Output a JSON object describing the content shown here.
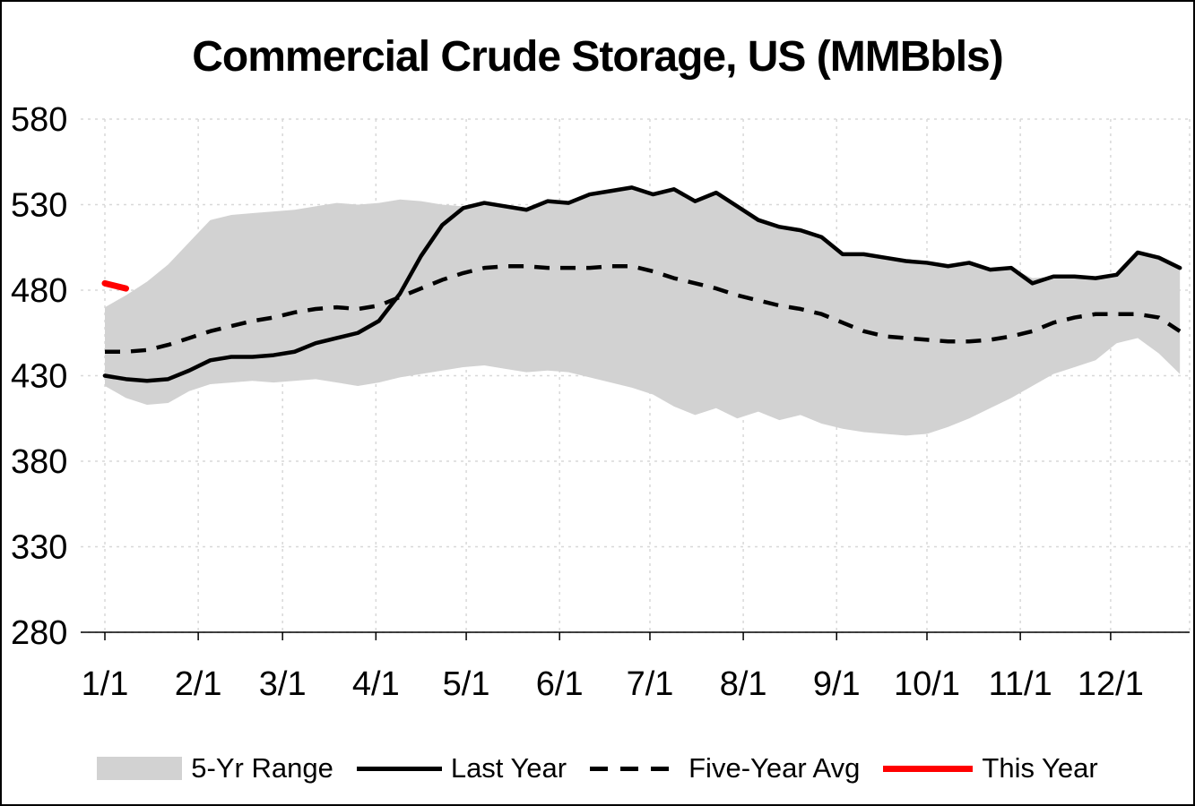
{
  "title": "Commercial Crude Storage, US (MMBbls)",
  "colors": {
    "band": "#d2d2d2",
    "line": "#000000",
    "red": "#ff0000",
    "grid": "#d8d8d8"
  },
  "chart_data": {
    "type": "line",
    "title": "Commercial Crude Storage, US (MMBbls)",
    "ylabel": "",
    "xlabel": "",
    "ylim": [
      280,
      580
    ],
    "yticks": [
      280,
      330,
      380,
      430,
      480,
      530,
      580
    ],
    "grid": true,
    "legend_position": "bottom",
    "xticks": {
      "days": [
        1,
        32,
        60,
        91,
        121,
        152,
        182,
        213,
        244,
        274,
        305,
        335
      ],
      "labels": [
        "1/1",
        "2/1",
        "3/1",
        "4/1",
        "5/1",
        "6/1",
        "7/1",
        "8/1",
        "9/1",
        "10/1",
        "11/1",
        "12/1"
      ]
    },
    "x_days": [
      1,
      8,
      15,
      22,
      29,
      36,
      43,
      50,
      57,
      64,
      71,
      78,
      85,
      92,
      99,
      106,
      113,
      120,
      127,
      134,
      141,
      148,
      155,
      162,
      169,
      176,
      183,
      190,
      197,
      204,
      211,
      218,
      225,
      232,
      239,
      246,
      253,
      260,
      267,
      274,
      281,
      288,
      295,
      302,
      309,
      316,
      323,
      330,
      337,
      344,
      351,
      358
    ],
    "series": [
      {
        "name": "5-Yr Range",
        "type": "band",
        "color": "#d2d2d2",
        "upper": [
          470,
          477,
          485,
          495,
          508,
          521,
          524,
          525,
          526,
          527,
          529,
          531,
          530,
          531,
          533,
          532,
          530,
          529,
          531,
          530,
          528,
          532,
          532,
          536,
          538,
          540,
          537,
          539,
          533,
          537,
          530,
          522,
          518,
          515,
          511,
          502,
          501,
          499,
          497,
          496,
          494,
          496,
          493,
          493,
          487,
          488,
          489,
          487,
          489,
          502,
          499,
          494
        ],
        "lower": [
          424,
          417,
          413,
          414,
          421,
          425,
          426,
          427,
          426,
          427,
          428,
          426,
          424,
          426,
          429,
          431,
          433,
          435,
          436,
          434,
          432,
          433,
          432,
          429,
          426,
          423,
          419,
          412,
          407,
          411,
          405,
          409,
          404,
          407,
          402,
          399,
          397,
          396,
          395,
          396,
          400,
          405,
          411,
          417,
          424,
          431,
          435,
          439,
          449,
          452,
          443,
          431
        ]
      },
      {
        "name": "Last Year",
        "type": "line",
        "style": "solid",
        "color": "#000000",
        "values": [
          430,
          428,
          427,
          428,
          433,
          439,
          441,
          441,
          442,
          444,
          449,
          452,
          455,
          462,
          478,
          500,
          518,
          528,
          531,
          529,
          527,
          532,
          531,
          536,
          538,
          540,
          536,
          539,
          532,
          537,
          529,
          521,
          517,
          515,
          511,
          501,
          501,
          499,
          497,
          496,
          494,
          496,
          492,
          493,
          484,
          488,
          488,
          487,
          489,
          502,
          499,
          493
        ]
      },
      {
        "name": "Five-Year Avg",
        "type": "line",
        "style": "dashed",
        "color": "#000000",
        "values": [
          444,
          444,
          445,
          448,
          452,
          456,
          459,
          462,
          464,
          467,
          469,
          470,
          469,
          471,
          476,
          481,
          486,
          490,
          493,
          494,
          494,
          493,
          493,
          493,
          494,
          494,
          491,
          487,
          484,
          481,
          477,
          474,
          471,
          469,
          466,
          461,
          456,
          453,
          452,
          451,
          450,
          450,
          451,
          453,
          456,
          461,
          464,
          466,
          466,
          466,
          464,
          456
        ]
      },
      {
        "name": "This Year",
        "type": "line",
        "style": "solid",
        "color": "#ff0000",
        "x_days": [
          1,
          8
        ],
        "values": [
          484,
          481
        ]
      }
    ],
    "legend": [
      {
        "label": "5-Yr Range",
        "swatch": "band"
      },
      {
        "label": "Last Year",
        "swatch": "solid"
      },
      {
        "label": "Five-Year Avg",
        "swatch": "dashed"
      },
      {
        "label": "This Year",
        "swatch": "red"
      }
    ]
  }
}
